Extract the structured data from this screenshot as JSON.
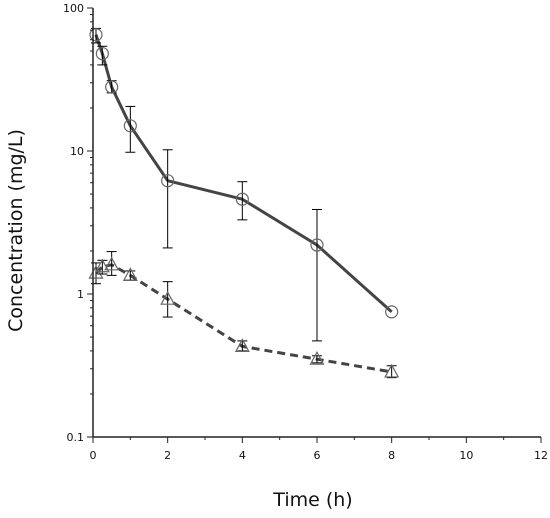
{
  "chart_data": {
    "type": "line",
    "xlabel": "Time (h)",
    "ylabel": "Concentration (mg/L)",
    "xlim": [
      0,
      12
    ],
    "ylim": [
      0.1,
      100
    ],
    "yscale": "log",
    "x_ticks": [
      0,
      2,
      4,
      6,
      8,
      10,
      12
    ],
    "x_tick_labels": [
      "0",
      "2",
      "4",
      "6",
      "8",
      "10",
      "12"
    ],
    "y_ticks": [
      0.1,
      1,
      10,
      100
    ],
    "y_tick_labels": [
      "0.1",
      "1",
      "10",
      "100"
    ],
    "grid": false,
    "legend": "none",
    "series": [
      {
        "marker": "circle",
        "line_style": "solid",
        "color": "#444444",
        "x": [
          0.08,
          0.25,
          0.5,
          1,
          2,
          4,
          6,
          8
        ],
        "y": [
          65,
          48,
          28,
          15,
          6.2,
          4.6,
          2.2,
          0.75
        ],
        "y_err_low": [
          57,
          40,
          25.5,
          9.8,
          2.1,
          3.3,
          0.47,
          0.75
        ],
        "y_err_high": [
          72,
          54,
          31,
          20.5,
          10.2,
          6.1,
          3.9,
          0.75
        ]
      },
      {
        "marker": "triangle",
        "line_style": "dashed",
        "color": "#444444",
        "x": [
          0.08,
          0.25,
          0.5,
          1,
          2,
          4,
          6,
          8
        ],
        "y": [
          1.4,
          1.55,
          1.6,
          1.35,
          0.92,
          0.43,
          0.35,
          0.285
        ],
        "y_err_low": [
          1.18,
          1.38,
          1.35,
          1.25,
          0.69,
          0.4,
          0.33,
          0.26
        ],
        "y_err_high": [
          1.65,
          1.72,
          1.98,
          1.45,
          1.22,
          0.47,
          0.37,
          0.315
        ]
      }
    ]
  }
}
